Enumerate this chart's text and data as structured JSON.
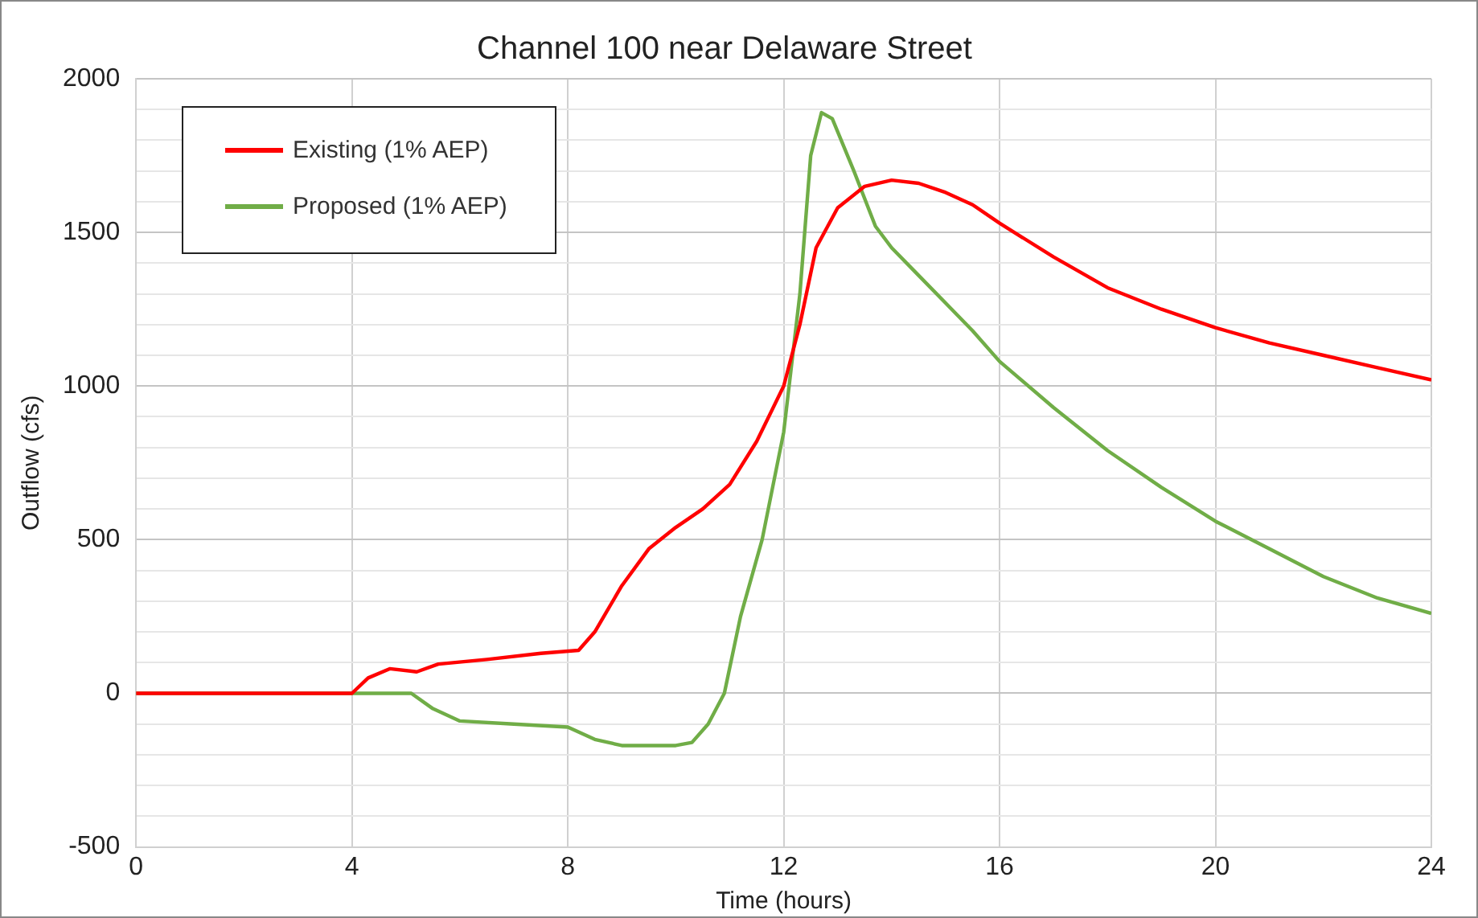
{
  "chart_data": {
    "type": "line",
    "title": "Channel 100 near Delaware Street",
    "xlabel": "Time (hours)",
    "ylabel": "Outflow (cfs)",
    "xlim": [
      0,
      24
    ],
    "xticks": [
      0,
      4,
      8,
      12,
      16,
      20,
      24
    ],
    "ylim": [
      -500,
      2000
    ],
    "yticks": [
      -500,
      {
        "value": -400,
        "label": null
      },
      {
        "value": -300,
        "label": null
      },
      {
        "value": -200,
        "label": null
      },
      {
        "value": -100,
        "label": null
      },
      0,
      {
        "value": 100,
        "label": null
      },
      {
        "value": 200,
        "label": null
      },
      {
        "value": 300,
        "label": null
      },
      {
        "value": 400,
        "label": null
      },
      500,
      {
        "value": 600,
        "label": null
      },
      {
        "value": 700,
        "label": null
      },
      {
        "value": 800,
        "label": null
      },
      {
        "value": 900,
        "label": null
      },
      1000,
      {
        "value": 1100,
        "label": null
      },
      {
        "value": 1200,
        "label": null
      },
      {
        "value": 1300,
        "label": null
      },
      {
        "value": 1400,
        "label": null
      },
      1500,
      {
        "value": 1600,
        "label": null
      },
      {
        "value": 1700,
        "label": null
      },
      {
        "value": 1800,
        "label": null
      },
      {
        "value": 1900,
        "label": null
      },
      2000
    ],
    "grid": true,
    "legend": "top left",
    "marker": "none",
    "line_style": "solid",
    "series": [
      {
        "name": "Existing (1% AEP)",
        "color": "#ff0000",
        "x": [
          0,
          4,
          4.3,
          4.7,
          5.2,
          5.6,
          6.5,
          7.5,
          8.2,
          8.5,
          9,
          9.5,
          10,
          10.5,
          11,
          11.5,
          12,
          12.3,
          12.6,
          13,
          13.5,
          14,
          14.5,
          15,
          15.5,
          16,
          17,
          18,
          19,
          20,
          21,
          22,
          23,
          24
        ],
        "values": [
          0,
          0,
          50,
          80,
          70,
          95,
          110,
          130,
          140,
          200,
          350,
          470,
          540,
          600,
          680,
          820,
          1000,
          1200,
          1450,
          1580,
          1650,
          1670,
          1660,
          1630,
          1590,
          1530,
          1420,
          1320,
          1250,
          1190,
          1140,
          1100,
          1060,
          1020
        ]
      },
      {
        "name": "Proposed (1% AEP)",
        "color": "#70ad47",
        "x": [
          0,
          5.1,
          5.5,
          6,
          7,
          8,
          8.5,
          9,
          9.5,
          10,
          10.3,
          10.6,
          10.9,
          11.2,
          11.6,
          12,
          12.3,
          12.5,
          12.7,
          12.9,
          13.3,
          13.7,
          14,
          14.5,
          15,
          15.5,
          16,
          17,
          18,
          19,
          20,
          21,
          22,
          23,
          24
        ],
        "values": [
          0,
          0,
          -50,
          -90,
          -100,
          -110,
          -150,
          -170,
          -170,
          -170,
          -160,
          -100,
          0,
          250,
          500,
          850,
          1300,
          1750,
          1890,
          1870,
          1700,
          1520,
          1450,
          1360,
          1270,
          1180,
          1080,
          930,
          790,
          670,
          560,
          470,
          380,
          310,
          260
        ]
      }
    ]
  }
}
